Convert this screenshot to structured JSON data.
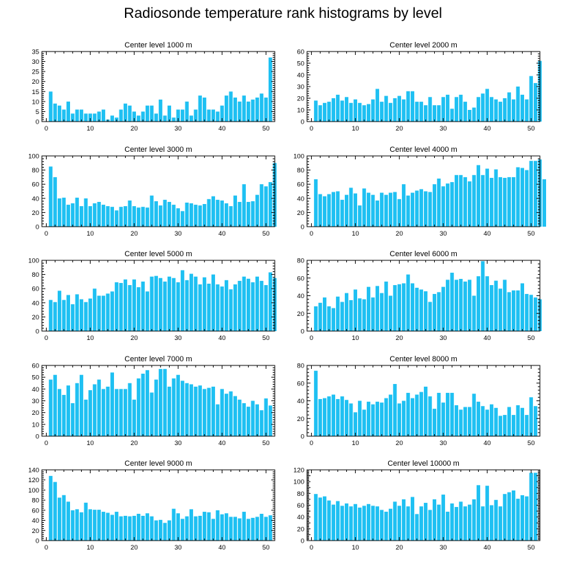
{
  "title": "Radiosonde temperature rank histograms by level",
  "bar_color": "#1ec0f2",
  "chart_data": [
    {
      "type": "bar",
      "title": "Center level 1000 m",
      "xlabel": "",
      "ylabel": "",
      "xlim": [
        -1,
        52
      ],
      "ylim": [
        0,
        35
      ],
      "yticks": [
        0,
        5,
        10,
        15,
        20,
        25,
        30,
        35
      ],
      "xticks": [
        0,
        10,
        20,
        30,
        40,
        50
      ],
      "values": [
        15,
        9,
        8,
        6,
        10,
        4,
        6,
        6,
        4,
        4,
        4,
        5,
        6,
        1,
        3,
        2,
        6,
        9,
        8,
        5,
        3,
        5,
        8,
        8,
        4,
        11,
        3,
        8,
        2,
        6,
        6,
        10,
        3,
        6,
        13,
        12,
        6,
        6,
        5,
        8,
        13,
        15,
        12,
        10,
        13,
        10,
        11,
        12,
        14,
        12,
        32,
        0
      ]
    },
    {
      "type": "bar",
      "title": "Center level 2000 m",
      "xlabel": "",
      "ylabel": "",
      "xlim": [
        -1,
        52
      ],
      "ylim": [
        0,
        60
      ],
      "yticks": [
        0,
        10,
        20,
        30,
        40,
        50,
        60
      ],
      "xticks": [
        0,
        10,
        20,
        30,
        40,
        50
      ],
      "values": [
        18,
        14,
        16,
        17,
        20,
        23,
        18,
        21,
        16,
        19,
        16,
        14,
        15,
        19,
        28,
        17,
        22,
        16,
        20,
        22,
        19,
        26,
        26,
        17,
        17,
        14,
        21,
        14,
        14,
        21,
        23,
        11,
        21,
        23,
        17,
        10,
        12,
        21,
        24,
        28,
        21,
        19,
        17,
        20,
        25,
        19,
        30,
        23,
        19,
        39,
        33,
        52
      ]
    },
    {
      "type": "bar",
      "title": "Center level 3000 m",
      "xlabel": "",
      "ylabel": "",
      "xlim": [
        -1,
        52
      ],
      "ylim": [
        0,
        100
      ],
      "yticks": [
        0,
        20,
        40,
        60,
        80,
        100
      ],
      "xticks": [
        0,
        10,
        20,
        30,
        40,
        50
      ],
      "values": [
        85,
        70,
        40,
        41,
        31,
        33,
        41,
        29,
        40,
        29,
        33,
        35,
        31,
        29,
        28,
        23,
        28,
        29,
        37,
        29,
        27,
        28,
        27,
        44,
        36,
        30,
        38,
        35,
        31,
        26,
        22,
        34,
        33,
        31,
        30,
        32,
        39,
        43,
        38,
        37,
        33,
        29,
        44,
        35,
        60,
        35,
        36,
        45,
        60,
        57,
        63,
        90
      ]
    },
    {
      "type": "bar",
      "title": "Center level 4000 m",
      "xlabel": "",
      "ylabel": "",
      "xlim": [
        -1,
        52
      ],
      "ylim": [
        0,
        100
      ],
      "yticks": [
        0,
        20,
        40,
        60,
        80,
        100
      ],
      "xticks": [
        0,
        10,
        20,
        30,
        40,
        50
      ],
      "values": [
        67,
        46,
        43,
        46,
        49,
        50,
        38,
        45,
        55,
        47,
        30,
        54,
        48,
        45,
        37,
        48,
        45,
        48,
        49,
        39,
        60,
        44,
        48,
        51,
        53,
        50,
        49,
        60,
        68,
        57,
        61,
        63,
        73,
        73,
        70,
        64,
        73,
        87,
        73,
        82,
        69,
        81,
        70,
        69,
        70,
        70,
        84,
        83,
        80,
        93,
        93,
        95,
        67
      ]
    },
    {
      "type": "bar",
      "title": "Center level 5000 m",
      "xlabel": "",
      "ylabel": "",
      "xlim": [
        -1,
        52
      ],
      "ylim": [
        0,
        100
      ],
      "yticks": [
        0,
        20,
        40,
        60,
        80,
        100
      ],
      "xticks": [
        0,
        10,
        20,
        30,
        40,
        50
      ],
      "values": [
        44,
        41,
        57,
        44,
        51,
        38,
        52,
        45,
        41,
        46,
        60,
        50,
        50,
        53,
        56,
        69,
        68,
        73,
        65,
        73,
        62,
        70,
        56,
        77,
        78,
        75,
        70,
        77,
        75,
        69,
        86,
        72,
        81,
        77,
        66,
        76,
        67,
        80,
        66,
        63,
        72,
        59,
        66,
        71,
        77,
        74,
        69,
        77,
        71,
        65,
        83,
        75
      ]
    },
    {
      "type": "bar",
      "title": "Center level 6000 m",
      "xlabel": "",
      "ylabel": "",
      "xlim": [
        -1,
        52
      ],
      "ylim": [
        0,
        80
      ],
      "yticks": [
        0,
        20,
        40,
        60,
        80
      ],
      "xticks": [
        0,
        10,
        20,
        30,
        40,
        50
      ],
      "values": [
        28,
        32,
        38,
        28,
        26,
        39,
        33,
        43,
        35,
        47,
        37,
        36,
        50,
        38,
        51,
        43,
        56,
        40,
        52,
        53,
        54,
        64,
        54,
        49,
        47,
        45,
        33,
        42,
        44,
        50,
        58,
        66,
        58,
        59,
        56,
        58,
        40,
        62,
        79,
        62,
        52,
        57,
        48,
        58,
        44,
        46,
        46,
        54,
        42,
        41,
        38,
        36
      ]
    },
    {
      "type": "bar",
      "title": "Center level 7000 m",
      "xlabel": "",
      "ylabel": "",
      "xlim": [
        -1,
        52
      ],
      "ylim": [
        0,
        60
      ],
      "yticks": [
        0,
        10,
        20,
        30,
        40,
        50,
        60
      ],
      "xticks": [
        0,
        10,
        20,
        30,
        40,
        50
      ],
      "values": [
        48,
        52,
        40,
        35,
        43,
        28,
        45,
        52,
        31,
        39,
        44,
        48,
        40,
        42,
        54,
        40,
        40,
        40,
        45,
        31,
        49,
        53,
        56,
        37,
        48,
        57,
        57,
        42,
        49,
        52,
        47,
        45,
        44,
        42,
        43,
        40,
        41,
        42,
        27,
        40,
        36,
        38,
        34,
        31,
        28,
        25,
        30,
        27,
        22,
        32,
        26
      ]
    },
    {
      "type": "bar",
      "title": "Center level 8000 m",
      "xlabel": "",
      "ylabel": "",
      "xlim": [
        -1,
        52
      ],
      "ylim": [
        0,
        80
      ],
      "yticks": [
        0,
        20,
        40,
        60,
        80
      ],
      "xticks": [
        0,
        10,
        20,
        30,
        40,
        50
      ],
      "values": [
        74,
        42,
        43,
        45,
        47,
        42,
        45,
        41,
        37,
        27,
        40,
        30,
        39,
        36,
        39,
        38,
        43,
        47,
        59,
        37,
        40,
        49,
        43,
        47,
        50,
        56,
        45,
        31,
        49,
        38,
        49,
        49,
        35,
        30,
        33,
        33,
        48,
        39,
        34,
        30,
        36,
        32,
        23,
        24,
        33,
        24,
        35,
        32,
        24,
        44,
        34
      ]
    },
    {
      "type": "bar",
      "title": "Center level 9000 m",
      "xlabel": "",
      "ylabel": "",
      "xlim": [
        -1,
        52
      ],
      "ylim": [
        0,
        140
      ],
      "yticks": [
        0,
        20,
        40,
        60,
        80,
        100,
        120,
        140
      ],
      "xticks": [
        0,
        10,
        20,
        30,
        40,
        50
      ],
      "values": [
        128,
        116,
        85,
        90,
        77,
        60,
        62,
        56,
        75,
        62,
        61,
        61,
        57,
        55,
        51,
        57,
        48,
        49,
        48,
        49,
        53,
        49,
        54,
        48,
        40,
        41,
        35,
        40,
        63,
        54,
        43,
        48,
        62,
        48,
        49,
        57,
        56,
        43,
        60,
        52,
        54,
        47,
        47,
        44,
        57,
        43,
        45,
        47,
        53,
        47,
        50
      ]
    },
    {
      "type": "bar",
      "title": "Center level 10000 m",
      "xlabel": "",
      "ylabel": "",
      "xlim": [
        -1,
        52
      ],
      "ylim": [
        0,
        120
      ],
      "yticks": [
        0,
        10,
        20,
        30,
        40,
        50,
        60,
        70,
        80,
        90,
        100,
        110,
        120
      ],
      "ytick_labels": [
        "0",
        "",
        "20",
        "",
        "40",
        "",
        "60",
        "",
        "80",
        "",
        "100",
        "",
        "120"
      ],
      "xticks": [
        0,
        10,
        20,
        30,
        40,
        50
      ],
      "values": [
        79,
        73,
        75,
        68,
        61,
        67,
        59,
        63,
        58,
        62,
        56,
        59,
        62,
        59,
        58,
        52,
        49,
        54,
        66,
        59,
        70,
        58,
        74,
        45,
        58,
        64,
        52,
        70,
        61,
        78,
        49,
        63,
        57,
        66,
        58,
        61,
        70,
        94,
        58,
        93,
        60,
        69,
        58,
        79,
        82,
        85,
        71,
        77,
        75,
        115,
        115
      ]
    }
  ]
}
